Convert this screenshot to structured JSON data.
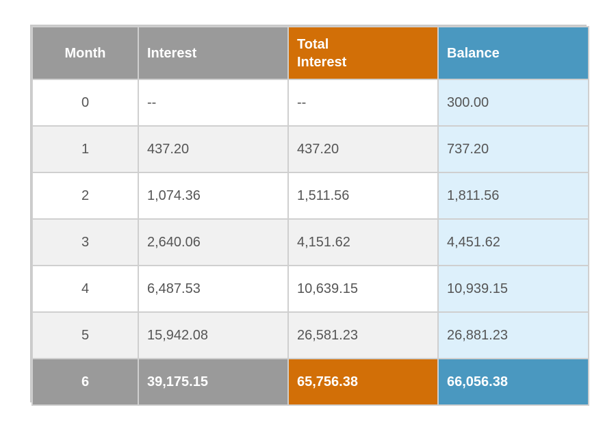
{
  "chart_data": {
    "type": "table",
    "columns": [
      "Month",
      "Interest",
      "Total Interest",
      "Balance"
    ],
    "header_lines": {
      "total_interest": [
        "Total",
        "Interest"
      ]
    },
    "rows": [
      {
        "month": "0",
        "interest": "--",
        "total_interest": "--",
        "balance": "300.00"
      },
      {
        "month": "1",
        "interest": "437.20",
        "total_interest": "437.20",
        "balance": "737.20"
      },
      {
        "month": "2",
        "interest": "1,074.36",
        "total_interest": "1,511.56",
        "balance": "1,811.56"
      },
      {
        "month": "3",
        "interest": "2,640.06",
        "total_interest": "4,151.62",
        "balance": "4,451.62"
      },
      {
        "month": "4",
        "interest": "6,487.53",
        "total_interest": "10,639.15",
        "balance": "10,939.15"
      },
      {
        "month": "5",
        "interest": "15,942.08",
        "total_interest": "26,581.23",
        "balance": "26,881.23"
      },
      {
        "month": "6",
        "interest": "39,175.15",
        "total_interest": "65,756.38",
        "balance": "66,056.38"
      }
    ],
    "colors": {
      "gray_header": "#9a9a9a",
      "orange_header": "#d26f07",
      "blue_header": "#4a98c0",
      "balance_cell_bg": "#ddf0fb",
      "zebra_gray": "#f1f1f1"
    }
  }
}
